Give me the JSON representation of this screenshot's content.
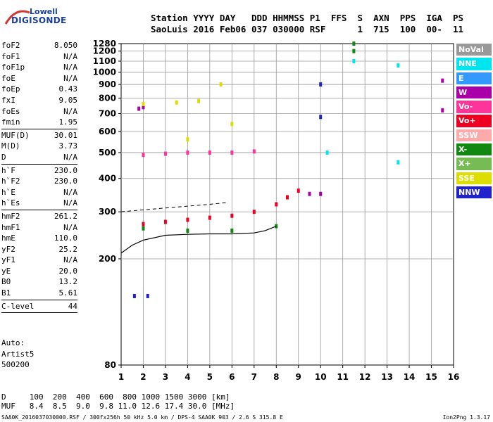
{
  "logo": {
    "line1": "Lowell",
    "line2": "DIGISONDE"
  },
  "header": {
    "labels": "Station YYYY DAY   DDD HHMMSS P1  FFS  S  AXN  PPS  IGA  PS",
    "values": "SaoLuis 2016 Feb06 037 030000 RSF      1  715  100  00-  11"
  },
  "params": {
    "group1": [
      {
        "label": "foF2",
        "value": "8.050"
      },
      {
        "label": "foF1",
        "value": "N/A"
      },
      {
        "label": "foF1p",
        "value": "N/A"
      },
      {
        "label": "foE",
        "value": "N/A"
      },
      {
        "label": "foEp",
        "value": "0.43"
      },
      {
        "label": "fxI",
        "value": "9.05"
      },
      {
        "label": "foEs",
        "value": "N/A"
      },
      {
        "label": "fmin",
        "value": "1.95"
      }
    ],
    "group2": [
      {
        "label": "MUF(D)",
        "value": "30.01"
      },
      {
        "label": "M(D)",
        "value": "3.73"
      },
      {
        "label": "D",
        "value": "N/A"
      }
    ],
    "group3": [
      {
        "label": "h`F",
        "value": "230.0"
      },
      {
        "label": "h`F2",
        "value": "230.0"
      },
      {
        "label": "h`E",
        "value": "N/A"
      },
      {
        "label": "h`Es",
        "value": "N/A"
      }
    ],
    "group4": [
      {
        "label": "hmF2",
        "value": "261.2"
      },
      {
        "label": "hmF1",
        "value": "N/A"
      },
      {
        "label": "hmE",
        "value": "110.0"
      },
      {
        "label": "yF2",
        "value": "25.2"
      },
      {
        "label": "yF1",
        "value": "N/A"
      },
      {
        "label": "yE",
        "value": "20.0"
      },
      {
        "label": "B0",
        "value": "13.2"
      },
      {
        "label": "B1",
        "value": "5.61"
      }
    ],
    "group5": [
      {
        "label": "C-level",
        "value": "44"
      }
    ]
  },
  "auto": {
    "line1": "Auto:",
    "line2": "Artist5",
    "line3": "500200"
  },
  "bottom": {
    "d_row": "D     100  200  400  600  800 1000 1500 3000 [km]",
    "muf_row": "MUF   8.4  8.5  9.0  9.8 11.0 12.6 17.4 30.0 [MHz]"
  },
  "footer": {
    "left": "SAA0K_2016037030000.RSF / 300fx256h 50 kHz 5.0 km / DPS-4 SAA0K 903 / 2.6 S 315.8 E",
    "right": "Ion2Png 1.3.17"
  },
  "legend": [
    {
      "label": "NoVal",
      "color": "#999999"
    },
    {
      "label": "NNE",
      "color": "#00e5ee"
    },
    {
      "label": "E",
      "color": "#3399ff"
    },
    {
      "label": "W",
      "color": "#aa00aa"
    },
    {
      "label": "Vo-",
      "color": "#ff3399"
    },
    {
      "label": "Vo+",
      "color": "#ee0022"
    },
    {
      "label": "SSW",
      "color": "#ffaaaa"
    },
    {
      "label": "X-",
      "color": "#118811"
    },
    {
      "label": "X+",
      "color": "#77bb55"
    },
    {
      "label": "SSE",
      "color": "#dddd00"
    },
    {
      "label": "NNW",
      "color": "#2222cc"
    }
  ],
  "chart_data": {
    "type": "scatter",
    "title": "",
    "xlabel": "",
    "ylabel": "",
    "x_unit": "MHz",
    "y_unit": "km",
    "xlim": [
      1,
      16
    ],
    "ylim": [
      80,
      1280
    ],
    "y_scale": "log",
    "grid": true,
    "x_ticks": [
      "1",
      "2",
      "3",
      "4",
      "5",
      "6",
      "7",
      "8",
      "9",
      "10",
      "11",
      "12",
      "13",
      "14",
      "15",
      "16"
    ],
    "y_ticks": [
      "80",
      "200",
      "300",
      "400",
      "500",
      "600",
      "700",
      "800",
      "900",
      "1000",
      "1100",
      "1200",
      "1280"
    ],
    "series": [
      {
        "name": "Vo+",
        "points": [
          [
            2.0,
            270
          ],
          [
            3.0,
            275
          ],
          [
            4.0,
            280
          ],
          [
            5.0,
            285
          ],
          [
            6.0,
            290
          ],
          [
            7.0,
            300
          ],
          [
            8.0,
            320
          ],
          [
            8.5,
            340
          ],
          [
            9.0,
            360
          ]
        ]
      },
      {
        "name": "Vo-",
        "points": [
          [
            2.0,
            490
          ],
          [
            3.0,
            495
          ],
          [
            4.0,
            500
          ],
          [
            5.0,
            500
          ],
          [
            6.0,
            500
          ],
          [
            7.0,
            505
          ]
        ]
      },
      {
        "name": "W",
        "points": [
          [
            1.8,
            730
          ],
          [
            2.0,
            740
          ],
          [
            9.5,
            350
          ],
          [
            10.0,
            350
          ],
          [
            15.5,
            930
          ],
          [
            15.5,
            720
          ]
        ]
      },
      {
        "name": "X-",
        "points": [
          [
            2.0,
            260
          ],
          [
            4.0,
            255
          ],
          [
            6.0,
            255
          ],
          [
            8.0,
            265
          ],
          [
            11.5,
            1280
          ],
          [
            11.5,
            1200
          ]
        ]
      },
      {
        "name": "SSE",
        "points": [
          [
            2.0,
            760
          ],
          [
            3.5,
            770
          ],
          [
            4.5,
            780
          ],
          [
            5.5,
            900
          ],
          [
            6.0,
            640
          ],
          [
            4.0,
            560
          ]
        ]
      },
      {
        "name": "NNE",
        "points": [
          [
            10.3,
            500
          ],
          [
            11.5,
            1100
          ],
          [
            13.5,
            1060
          ],
          [
            13.5,
            460
          ]
        ]
      },
      {
        "name": "NNW",
        "points": [
          [
            1.6,
            145
          ],
          [
            2.2,
            145
          ],
          [
            10.0,
            900
          ],
          [
            10.0,
            680
          ]
        ]
      }
    ],
    "trace_solid": [
      [
        1.0,
        210
      ],
      [
        1.5,
        225
      ],
      [
        2.0,
        235
      ],
      [
        3.0,
        245
      ],
      [
        4.0,
        247
      ],
      [
        5.0,
        248
      ],
      [
        6.0,
        248
      ],
      [
        7.0,
        250
      ],
      [
        7.5,
        255
      ],
      [
        8.0,
        265
      ]
    ],
    "trace_dashed": [
      [
        1.0,
        300
      ],
      [
        2.0,
        305
      ],
      [
        3.0,
        310
      ],
      [
        4.0,
        315
      ],
      [
        5.0,
        320
      ],
      [
        5.8,
        325
      ]
    ]
  }
}
